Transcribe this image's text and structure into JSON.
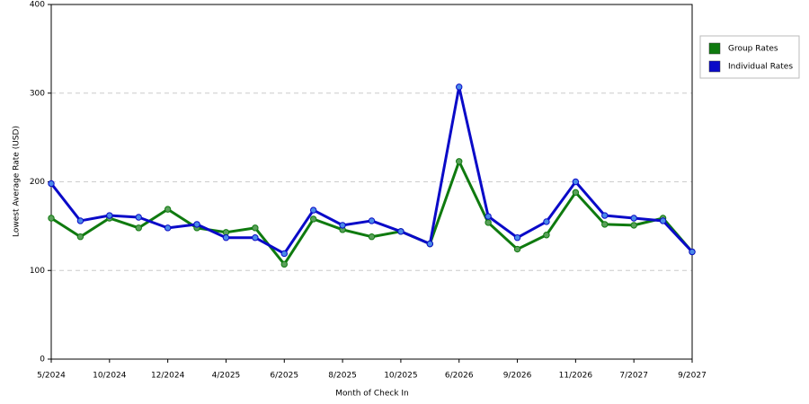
{
  "chart_data": {
    "type": "line",
    "x_label": "Month of Check In",
    "y_label": "Lowest Average Rate (USD)",
    "categories": [
      "5/2024",
      null,
      "10/2024",
      null,
      "12/2024",
      null,
      "4/2025",
      null,
      "6/2025",
      null,
      "8/2025",
      null,
      "10/2025",
      null,
      "6/2026",
      null,
      "9/2026",
      null,
      "11/2026",
      null,
      "7/2027",
      null,
      "9/2027"
    ],
    "series": [
      {
        "name": "Group Rates",
        "color": "#0f7a0f",
        "values": [
          159,
          138,
          159,
          148,
          169,
          148,
          143,
          148,
          107,
          158,
          146,
          138,
          144,
          130,
          223,
          154,
          124,
          140,
          188,
          152,
          151,
          159,
          121
        ]
      },
      {
        "name": "Individual Rates",
        "color": "#0a0ac8",
        "values": [
          198,
          156,
          162,
          160,
          148,
          152,
          137,
          137,
          119,
          168,
          151,
          156,
          144,
          130,
          307,
          161,
          137,
          155,
          200,
          162,
          159,
          156,
          121
        ]
      }
    ],
    "ylim": [
      0,
      400
    ],
    "yticks": [
      0,
      100,
      200,
      300,
      400
    ],
    "grid": true
  }
}
